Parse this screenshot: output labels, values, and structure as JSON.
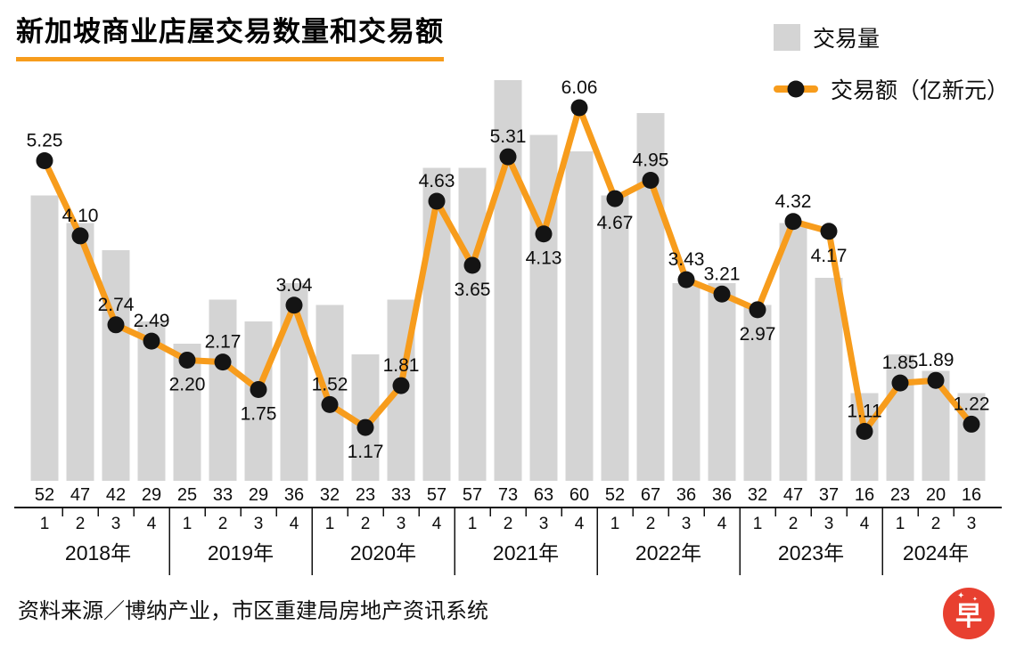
{
  "title": "新加坡商业店屋交易数量和交易额",
  "legend": {
    "volume_label": "交易量",
    "value_label": "交易额（亿新元）"
  },
  "source": "资料来源／博纳产业，市区重建局房地产资讯系统",
  "logo": {
    "text": "早",
    "star": "✦"
  },
  "colors": {
    "bar": "#d4d4d4",
    "line": "#f79c1c",
    "dot": "#141414",
    "title_underline": "#f79c1c",
    "logo_red": "#e84030",
    "text": "#0d0d0d"
  },
  "chart_data": {
    "type": "bar+line",
    "title": "新加坡商业店屋交易数量和交易额",
    "legend_position": "top-right",
    "grid": false,
    "x_groups": [
      {
        "label": "2018年",
        "quarters": [
          "1",
          "2",
          "3",
          "4"
        ]
      },
      {
        "label": "2019年",
        "quarters": [
          "1",
          "2",
          "3",
          "4"
        ]
      },
      {
        "label": "2020年",
        "quarters": [
          "1",
          "2",
          "3",
          "4"
        ]
      },
      {
        "label": "2021年",
        "quarters": [
          "1",
          "2",
          "3",
          "4"
        ]
      },
      {
        "label": "2022年",
        "quarters": [
          "1",
          "2",
          "3",
          "4"
        ]
      },
      {
        "label": "2023年",
        "quarters": [
          "1",
          "2",
          "3",
          "4"
        ]
      },
      {
        "label": "2024年",
        "quarters": [
          "1",
          "2",
          "3"
        ]
      }
    ],
    "series": [
      {
        "name": "交易量",
        "type": "bar",
        "values": [
          52,
          47,
          42,
          29,
          25,
          33,
          29,
          36,
          32,
          23,
          33,
          57,
          57,
          73,
          63,
          60,
          52,
          67,
          36,
          36,
          32,
          47,
          37,
          16,
          23,
          20,
          16
        ]
      },
      {
        "name": "交易额（亿新元）",
        "type": "line",
        "values": [
          5.25,
          4.1,
          2.74,
          2.49,
          2.2,
          2.17,
          1.75,
          3.04,
          1.52,
          1.17,
          1.81,
          4.63,
          3.65,
          5.31,
          4.13,
          6.06,
          4.67,
          4.95,
          3.43,
          3.21,
          2.97,
          4.32,
          4.17,
          1.11,
          1.85,
          1.89,
          1.22
        ],
        "labels": [
          "5.25",
          "4.10",
          "2.74",
          "2.49",
          "2.20",
          "2.17",
          "1.75",
          "3.04",
          "1.52",
          "1.17",
          "1.81",
          "4.63",
          "3.65",
          "5.31",
          "4.13",
          "6.06",
          "4.67",
          "4.95",
          "3.43",
          "3.21",
          "2.97",
          "4.32",
          "4.17",
          "1.11",
          "1.85",
          "1.89",
          "1.22"
        ],
        "label_position": [
          "above",
          "above",
          "above",
          "above",
          "below",
          "above",
          "below",
          "above",
          "above",
          "below",
          "above",
          "above",
          "below",
          "above",
          "below",
          "above",
          "below",
          "above",
          "above",
          "above",
          "below",
          "above",
          "below",
          "above",
          "above",
          "above",
          "above"
        ]
      }
    ],
    "bar_axis_range": [
      0,
      73
    ],
    "line_axis_range": [
      0,
      6.06
    ]
  }
}
